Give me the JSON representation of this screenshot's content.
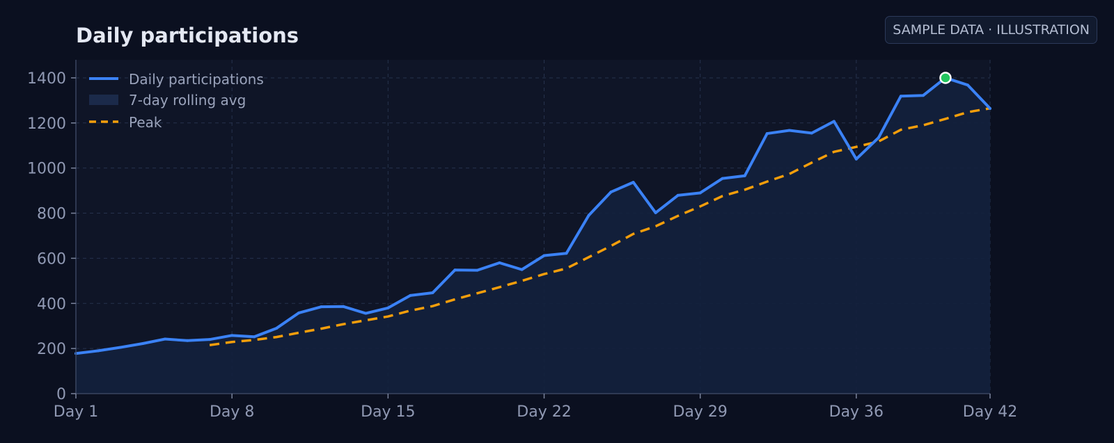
{
  "badge": "SAMPLE DATA · ILLUSTRATION",
  "colors": {
    "background": "#0b1020",
    "plot_background": "#0f1527",
    "grid": "#26324d",
    "daily_line": "#3b82f6",
    "area_fill": "#13203d",
    "rolling_line": "#f59e0b",
    "peak_marker": "#22c55e"
  },
  "chart_data": {
    "type": "line",
    "title": "Daily participations",
    "xlabel": "",
    "ylabel": "",
    "x": [
      1,
      2,
      3,
      4,
      5,
      6,
      7,
      8,
      9,
      10,
      11,
      12,
      13,
      14,
      15,
      16,
      17,
      18,
      19,
      20,
      21,
      22,
      23,
      24,
      25,
      26,
      27,
      28,
      29,
      30,
      31,
      32,
      33,
      34,
      35,
      36,
      37,
      38,
      39,
      40,
      41,
      42
    ],
    "xlim": [
      1,
      42
    ],
    "ylim": [
      0,
      1480
    ],
    "x_ticks": [
      1,
      8,
      15,
      22,
      29,
      36,
      42
    ],
    "x_tick_labels": [
      "Day 1",
      "Day 8",
      "Day 15",
      "Day 22",
      "Day 29",
      "Day 36",
      "Day 42"
    ],
    "y_ticks": [
      0,
      200,
      400,
      600,
      800,
      1000,
      1200,
      1400
    ],
    "y_tick_labels": [
      "0",
      "200",
      "400",
      "600",
      "800",
      "1000",
      "1200",
      "1400"
    ],
    "grid": true,
    "legend_position": "top-left",
    "series": [
      {
        "name": "Daily participations",
        "style": "solid line",
        "values": [
          178,
          190,
          205,
          222,
          242,
          235,
          240,
          258,
          252,
          290,
          358,
          385,
          386,
          356,
          380,
          435,
          447,
          548,
          547,
          580,
          550,
          612,
          622,
          790,
          894,
          937,
          802,
          879,
          890,
          954,
          966,
          1153,
          1167,
          1155,
          1207,
          1040,
          1135,
          1319,
          1322,
          1400,
          1368,
          1264
        ]
      },
      {
        "name": "7-day rolling avg",
        "style": "shaded area",
        "values": [
          178,
          190,
          205,
          222,
          242,
          235,
          240,
          258,
          252,
          290,
          358,
          385,
          386,
          356,
          380,
          435,
          447,
          548,
          547,
          580,
          550,
          612,
          622,
          790,
          894,
          937,
          802,
          879,
          890,
          954,
          966,
          1153,
          1167,
          1155,
          1207,
          1040,
          1135,
          1319,
          1322,
          1400,
          1368,
          1264
        ]
      },
      {
        "name": "Peak",
        "style": "dashed line",
        "x": [
          7,
          8,
          9,
          10,
          11,
          12,
          13,
          14,
          15,
          16,
          17,
          18,
          19,
          20,
          21,
          22,
          23,
          24,
          25,
          26,
          27,
          28,
          29,
          30,
          31,
          32,
          33,
          34,
          35,
          36,
          37,
          38,
          39,
          40,
          41,
          42
        ],
        "values": [
          215,
          229,
          238,
          251,
          270,
          288,
          308,
          325,
          342,
          368,
          388,
          418,
          445,
          472,
          500,
          530,
          555,
          605,
          655,
          708,
          742,
          788,
          830,
          876,
          904,
          940,
          974,
          1024,
          1072,
          1094,
          1118,
          1170,
          1190,
          1218,
          1248,
          1265
        ]
      }
    ],
    "peak_marker": {
      "x": 40,
      "y": 1400
    }
  }
}
